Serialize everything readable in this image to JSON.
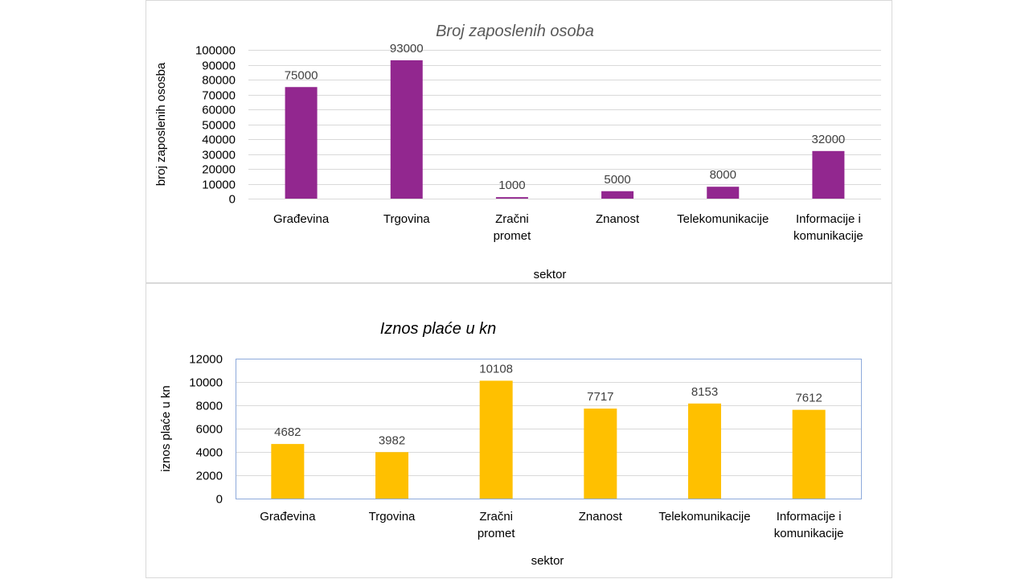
{
  "chart_data": [
    {
      "type": "bar",
      "title": "Broj zaposlenih osoba",
      "xlabel": "sektor",
      "ylabel": "broj zaposlenih ososba",
      "categories": [
        [
          "Građevina"
        ],
        [
          "Trgovina"
        ],
        [
          "Zračni",
          "promet"
        ],
        [
          "Znanost"
        ],
        [
          "Telekomunikacije"
        ],
        [
          "Informacije i",
          "komunikacije"
        ]
      ],
      "series": [
        {
          "values": [
            75000,
            93000,
            1000,
            5000,
            8000,
            32000
          ]
        }
      ],
      "ylim": [
        0,
        100000
      ],
      "yticks": [
        "0",
        "10000",
        "20000",
        "30000",
        "40000",
        "50000",
        "60000",
        "70000",
        "80000",
        "90000",
        "100000"
      ],
      "data_labels": [
        "75000",
        "93000",
        "1000",
        "5000",
        "8000",
        "32000"
      ],
      "grid": true,
      "colors": {
        "bar": "#92278f",
        "title": "#595959"
      }
    },
    {
      "type": "bar",
      "title": "Iznos plaće u kn",
      "xlabel": "sektor",
      "ylabel": "iznos plaće u kn",
      "categories": [
        [
          "Građevina"
        ],
        [
          "Trgovina"
        ],
        [
          "Zračni",
          "promet"
        ],
        [
          "Znanost"
        ],
        [
          "Telekomunikacije"
        ],
        [
          "Informacije i",
          "komunikacije"
        ]
      ],
      "series": [
        {
          "values": [
            4682,
            3982,
            10108,
            7717,
            8153,
            7612
          ]
        }
      ],
      "ylim": [
        0,
        12000
      ],
      "yticks": [
        "0",
        "2000",
        "4000",
        "6000",
        "8000",
        "10000",
        "12000"
      ],
      "data_labels": [
        "4682",
        "3982",
        "10108",
        "7717",
        "8153",
        "7612"
      ],
      "grid": true,
      "colors": {
        "bar": "#ffc000",
        "title": "#000000",
        "plot_border": "#8eaadb"
      }
    }
  ]
}
